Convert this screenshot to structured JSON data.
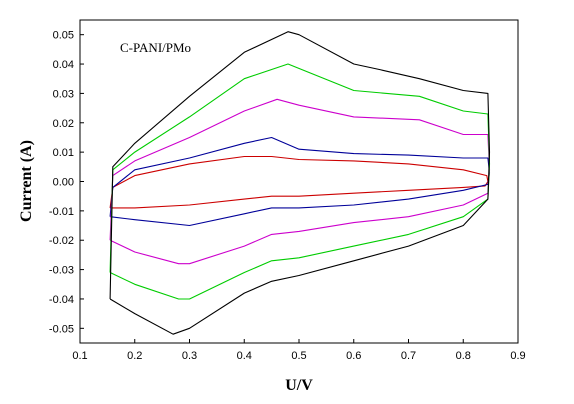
{
  "chart_data": {
    "type": "line",
    "xlabel": "U/V",
    "ylabel": "Current (A)",
    "annotation": "C-PANI/PMo",
    "xlim": [
      0.1,
      0.9
    ],
    "ylim": [
      -0.055,
      0.055
    ],
    "x_ticks": [
      0.1,
      0.2,
      0.3,
      0.4,
      0.5,
      0.6,
      0.7,
      0.8,
      0.9
    ],
    "x_tick_labels": [
      "0.1",
      "0.2",
      "0.3",
      "0.4",
      "0.5",
      "0.6",
      "0.7",
      "0.8",
      "0.9"
    ],
    "y_ticks": [
      -0.05,
      -0.04,
      -0.03,
      -0.02,
      -0.01,
      0.0,
      0.01,
      0.02,
      0.03,
      0.04,
      0.05
    ],
    "y_tick_labels": [
      "-0.05",
      "-0.04",
      "-0.03",
      "-0.02",
      "-0.01",
      "0.00",
      "0.01",
      "0.02",
      "0.03",
      "0.04",
      "0.05"
    ],
    "grid": false,
    "legend": "none",
    "series": [
      {
        "color": "#cc0000",
        "x": [
          0.155,
          0.2,
          0.3,
          0.4,
          0.45,
          0.5,
          0.6,
          0.7,
          0.8,
          0.84,
          0.845,
          0.843,
          0.8,
          0.7,
          0.6,
          0.5,
          0.45,
          0.4,
          0.3,
          0.2,
          0.16,
          0.155
        ],
        "y": [
          -0.009,
          -0.009,
          -0.008,
          -0.006,
          -0.005,
          -0.005,
          -0.004,
          -0.003,
          -0.002,
          -0.0015,
          0.0,
          0.002,
          0.004,
          0.006,
          0.007,
          0.0075,
          0.0085,
          0.0085,
          0.006,
          0.002,
          -0.002,
          -0.009
        ]
      },
      {
        "color": "#000099",
        "x": [
          0.155,
          0.2,
          0.3,
          0.4,
          0.45,
          0.5,
          0.6,
          0.7,
          0.8,
          0.845,
          0.848,
          0.845,
          0.8,
          0.7,
          0.6,
          0.5,
          0.45,
          0.4,
          0.3,
          0.2,
          0.16,
          0.155
        ],
        "y": [
          -0.012,
          -0.013,
          -0.015,
          -0.011,
          -0.009,
          -0.009,
          -0.008,
          -0.006,
          -0.003,
          -0.001,
          0.003,
          0.008,
          0.008,
          0.009,
          0.0095,
          0.011,
          0.015,
          0.013,
          0.008,
          0.004,
          -0.002,
          -0.012
        ]
      },
      {
        "color": "#cc00cc",
        "x": [
          0.155,
          0.2,
          0.28,
          0.3,
          0.4,
          0.45,
          0.5,
          0.6,
          0.7,
          0.8,
          0.845,
          0.848,
          0.845,
          0.8,
          0.72,
          0.6,
          0.5,
          0.46,
          0.4,
          0.3,
          0.2,
          0.16,
          0.155
        ],
        "y": [
          -0.02,
          -0.024,
          -0.028,
          -0.028,
          -0.022,
          -0.018,
          -0.017,
          -0.014,
          -0.012,
          -0.008,
          -0.004,
          0.004,
          0.016,
          0.016,
          0.021,
          0.022,
          0.026,
          0.028,
          0.024,
          0.015,
          0.007,
          0.002,
          -0.02
        ]
      },
      {
        "color": "#00cc00",
        "x": [
          0.155,
          0.2,
          0.28,
          0.3,
          0.4,
          0.45,
          0.5,
          0.6,
          0.7,
          0.8,
          0.845,
          0.848,
          0.845,
          0.8,
          0.72,
          0.6,
          0.52,
          0.48,
          0.4,
          0.3,
          0.2,
          0.16,
          0.155
        ],
        "y": [
          -0.031,
          -0.035,
          -0.04,
          -0.04,
          -0.031,
          -0.027,
          -0.026,
          -0.022,
          -0.018,
          -0.012,
          -0.006,
          0.006,
          0.023,
          0.024,
          0.029,
          0.031,
          0.037,
          0.04,
          0.035,
          0.022,
          0.01,
          0.004,
          -0.031
        ]
      },
      {
        "color": "#000000",
        "x": [
          0.155,
          0.2,
          0.27,
          0.3,
          0.4,
          0.45,
          0.5,
          0.6,
          0.7,
          0.8,
          0.845,
          0.848,
          0.845,
          0.8,
          0.72,
          0.65,
          0.6,
          0.5,
          0.48,
          0.4,
          0.3,
          0.2,
          0.16,
          0.155
        ],
        "y": [
          -0.04,
          -0.045,
          -0.052,
          -0.05,
          -0.038,
          -0.034,
          -0.032,
          -0.027,
          -0.022,
          -0.015,
          -0.006,
          0.01,
          0.03,
          0.031,
          0.035,
          0.038,
          0.04,
          0.05,
          0.051,
          0.044,
          0.029,
          0.013,
          0.005,
          -0.04
        ]
      }
    ]
  }
}
